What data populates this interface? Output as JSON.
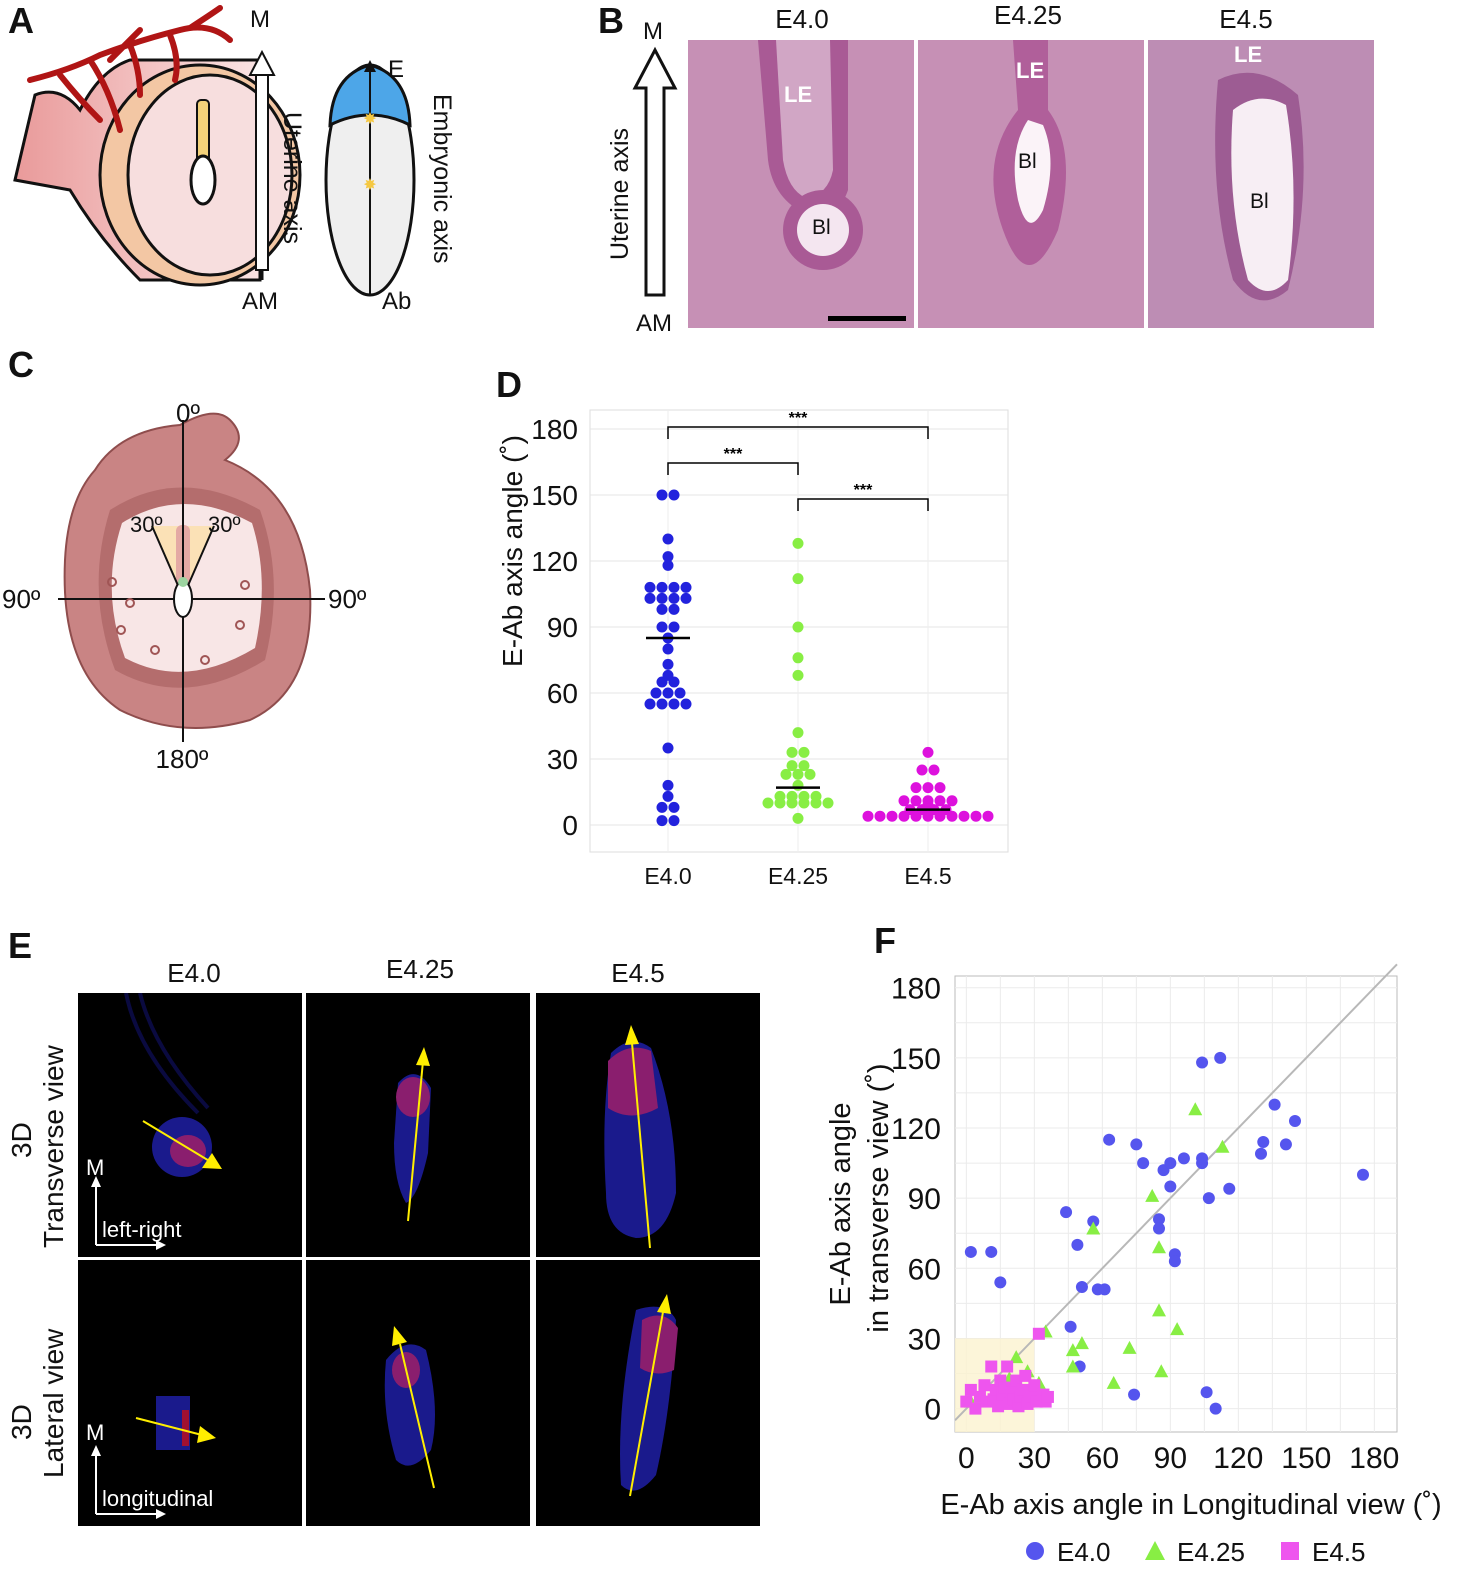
{
  "panels": {
    "a": "A",
    "b": "B",
    "c": "C",
    "d": "D",
    "e": "E",
    "f": "F"
  },
  "panel_a": {
    "m": "M",
    "am": "AM",
    "uterine_axis": "Uterine axis",
    "e": "E",
    "ab": "Ab",
    "embryonic_axis": "Embryonic axis"
  },
  "panel_b": {
    "m": "M",
    "am": "AM",
    "uterine_axis": "Uterine axis",
    "stages": [
      "E4.0",
      "E4.25",
      "E4.5"
    ],
    "le": "LE",
    "bl": "Bl"
  },
  "panel_c": {
    "top": "0º",
    "bottom": "180º",
    "left": "90º",
    "right": "90º",
    "left_small": "30º",
    "right_small": "30º"
  },
  "panel_e": {
    "stages": [
      "E4.0",
      "E4.25",
      "E4.5"
    ],
    "row1_3d": "3D",
    "row1_view": "Transverse view",
    "row2_3d": "3D",
    "row2_view": "Lateral view",
    "m": "M",
    "left_right": "left-right",
    "longitudinal": "longitudinal"
  },
  "colors": {
    "e40": "#2222dd",
    "e425": "#88ee44",
    "e45": "#dd11dd",
    "e40_f": "#5555ee",
    "e45_f": "#ee55ee",
    "tissue": "#c98fb6"
  },
  "chart_data": [
    {
      "type": "scatter",
      "panel": "D",
      "ylabel": "E-Ab axis angle (˚)",
      "categories": [
        "E4.0",
        "E4.25",
        "E4.5"
      ],
      "ylim": [
        0,
        180
      ],
      "yticks": [
        0,
        30,
        60,
        90,
        120,
        150,
        180
      ],
      "grid": true,
      "significance": [
        {
          "from": "E4.0",
          "to": "E4.25",
          "label": "***"
        },
        {
          "from": "E4.25",
          "to": "E4.5",
          "label": "***"
        },
        {
          "from": "E4.0",
          "to": "E4.5",
          "label": "***"
        }
      ],
      "series": [
        {
          "name": "E4.0",
          "values": [
            150,
            150,
            130,
            122,
            118,
            108,
            108,
            108,
            108,
            103,
            103,
            103,
            103,
            98,
            98,
            90,
            90,
            85,
            80,
            73,
            68,
            65,
            65,
            60,
            60,
            60,
            55,
            55,
            55,
            55,
            35,
            18,
            13,
            8,
            8,
            2,
            2
          ],
          "median": 85
        },
        {
          "name": "E4.25",
          "values": [
            128,
            112,
            90,
            76,
            68,
            42,
            33,
            33,
            27,
            27,
            23,
            23,
            23,
            18,
            13,
            13,
            13,
            13,
            10,
            10,
            10,
            10,
            10,
            10,
            3
          ],
          "median": 17
        },
        {
          "name": "E4.5",
          "values": [
            33,
            25,
            25,
            17,
            17,
            17,
            11,
            11,
            11,
            11,
            11,
            9,
            7,
            7,
            7,
            7,
            4,
            4,
            4,
            4,
            4,
            4,
            4,
            4,
            4,
            4,
            4
          ],
          "median": 7
        }
      ]
    },
    {
      "type": "scatter",
      "panel": "F",
      "xlabel": "E-Ab axis angle in Longitudinal view (˚)",
      "ylabel": "E-Ab  axis angle in transverse view (˚)",
      "xlim": [
        -5,
        190
      ],
      "ylim": [
        -10,
        185
      ],
      "xticks": [
        0,
        30,
        60,
        90,
        120,
        150,
        180
      ],
      "yticks": [
        0,
        30,
        60,
        90,
        120,
        150,
        180
      ],
      "grid": true,
      "legend_position": "bottom",
      "series": [
        {
          "name": "E4.0",
          "marker": "circle",
          "x": [
            2,
            11,
            15,
            44,
            49,
            51,
            56,
            58,
            61,
            63,
            75,
            78,
            85,
            85,
            87,
            90,
            90,
            92,
            92,
            96,
            104,
            104,
            104,
            107,
            112,
            116,
            130,
            131,
            136,
            141,
            145,
            175,
            46,
            50,
            74,
            106,
            110
          ],
          "y": [
            67,
            67,
            54,
            84,
            70,
            52,
            80,
            51,
            51,
            115,
            113,
            105,
            81,
            77,
            102,
            105,
            95,
            66,
            63,
            107,
            148,
            105,
            107,
            90,
            150,
            94,
            109,
            114,
            130,
            113,
            123,
            100,
            35,
            18,
            6,
            7,
            0
          ]
        },
        {
          "name": "E4.25",
          "marker": "triangle",
          "x": [
            2,
            18,
            19,
            32,
            35,
            47,
            51,
            56,
            65,
            72,
            82,
            85,
            85,
            86,
            93,
            113,
            101,
            47,
            22,
            27
          ],
          "y": [
            3,
            7,
            13,
            11,
            33,
            25,
            28,
            77,
            11,
            26,
            91,
            69,
            42,
            16,
            34,
            112,
            128,
            18,
            22,
            16
          ],
          "note": "approximate"
        },
        {
          "name": "E4.5",
          "marker": "square",
          "x": [
            0,
            2,
            4,
            6,
            8,
            9,
            11,
            12,
            13,
            14,
            15,
            16,
            17,
            18,
            19,
            20,
            21,
            22,
            23,
            24,
            25,
            26,
            27,
            28,
            29,
            30,
            31,
            32,
            34,
            35,
            36
          ],
          "y": [
            3,
            8,
            0,
            5,
            10,
            3,
            18,
            4,
            8,
            1,
            12,
            6,
            9,
            18,
            2,
            7,
            4,
            12,
            1,
            5,
            8,
            14,
            2,
            7,
            5,
            10,
            3,
            32,
            6,
            3,
            5
          ]
        }
      ]
    }
  ]
}
